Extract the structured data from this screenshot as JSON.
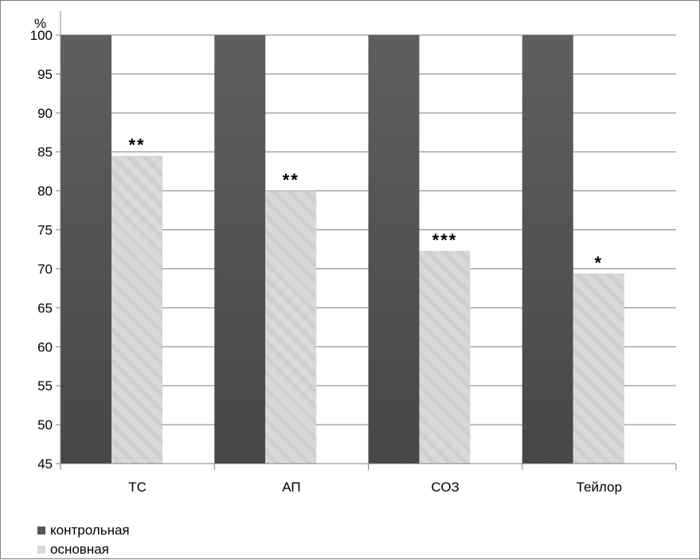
{
  "chart_data": {
    "type": "bar",
    "unit_label": "%",
    "categories": [
      "ТС",
      "АП",
      "СОЗ",
      "Тейлор"
    ],
    "series": [
      {
        "name": "контрольная",
        "values": [
          100,
          100,
          100,
          100
        ],
        "color": "#555555"
      },
      {
        "name": "основная",
        "values": [
          84.5,
          80,
          72.3,
          69.4
        ],
        "color": "#d9d9d9"
      }
    ],
    "annotations": [
      "**",
      "**",
      "***",
      "*"
    ],
    "ylim": [
      45,
      100
    ],
    "yticks": [
      45,
      50,
      55,
      60,
      65,
      70,
      75,
      80,
      85,
      90,
      95,
      100
    ],
    "grid": true,
    "legend_position": "bottom-left"
  }
}
